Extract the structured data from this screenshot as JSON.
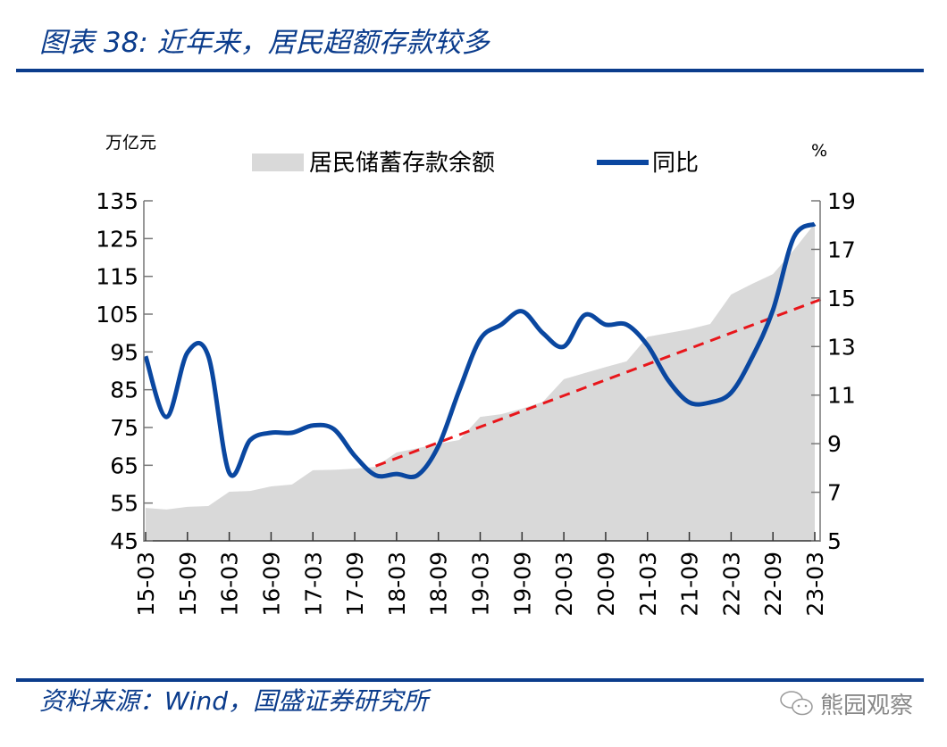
{
  "header": {
    "title": "图表 38:  近年来，居民超额存款较多"
  },
  "footer": {
    "source": "资料来源：Wind，国盛证券研究所",
    "watermark": "熊园观察",
    "watermark_icon": "wechat-icon"
  },
  "colors": {
    "brand": "#0b3c8c",
    "area": "#d9d9d9",
    "line": "#0a47a0",
    "trend": "#e8161b"
  },
  "chart_data": {
    "type": "area+line",
    "left_unit": "万亿元",
    "right_unit": "%",
    "left_ylim": [
      45,
      135
    ],
    "left_ticks": [
      135,
      125,
      115,
      105,
      95,
      85,
      75,
      65,
      55,
      45
    ],
    "right_ylim": [
      5,
      19
    ],
    "right_ticks": [
      19,
      17,
      15,
      13,
      11,
      9,
      7,
      5
    ],
    "x_tick_labels": [
      "15-03",
      "15-09",
      "16-03",
      "16-09",
      "17-03",
      "17-09",
      "18-03",
      "18-09",
      "19-03",
      "19-09",
      "20-03",
      "20-09",
      "21-03",
      "21-09",
      "22-03",
      "22-09",
      "23-03"
    ],
    "legend_position": "top",
    "x": [
      "15-03",
      "15-06",
      "15-09",
      "15-12",
      "16-03",
      "16-06",
      "16-09",
      "16-12",
      "17-03",
      "17-06",
      "17-09",
      "17-12",
      "18-03",
      "18-06",
      "18-09",
      "18-12",
      "19-03",
      "19-06",
      "19-09",
      "19-12",
      "20-03",
      "20-06",
      "20-09",
      "20-12",
      "21-03",
      "21-06",
      "21-09",
      "21-12",
      "22-03",
      "22-06",
      "22-09",
      "22-12",
      "23-03"
    ],
    "series": [
      {
        "name": "居民储蓄存款余额",
        "type": "area",
        "axis": "left",
        "values": [
          53.7,
          53.3,
          54.0,
          54.2,
          58.0,
          58.2,
          59.4,
          59.9,
          63.7,
          63.8,
          64.1,
          64.6,
          68.4,
          69.5,
          70.7,
          71.7,
          77.8,
          78.5,
          80.0,
          81.8,
          87.8,
          89.4,
          91.0,
          92.5,
          99.0,
          100.0,
          101.0,
          102.4,
          110.2,
          113.0,
          115.6,
          122.0,
          129.0
        ]
      },
      {
        "name": "同比",
        "type": "line",
        "axis": "right",
        "values": [
          12.6,
          10.1,
          12.75,
          12.6,
          7.8,
          9.15,
          9.45,
          9.45,
          9.75,
          9.6,
          8.5,
          7.7,
          7.75,
          7.7,
          8.9,
          11.2,
          13.3,
          13.9,
          14.45,
          13.55,
          13.0,
          14.3,
          13.9,
          13.9,
          13.05,
          11.6,
          10.7,
          10.7,
          11.1,
          12.55,
          14.5,
          17.5,
          18.05
        ]
      },
      {
        "type": "trend",
        "axis": "left",
        "style": "dashed",
        "x": [
          "17-12",
          "23-03"
        ],
        "values": [
          64.8,
          108.3
        ]
      }
    ]
  }
}
